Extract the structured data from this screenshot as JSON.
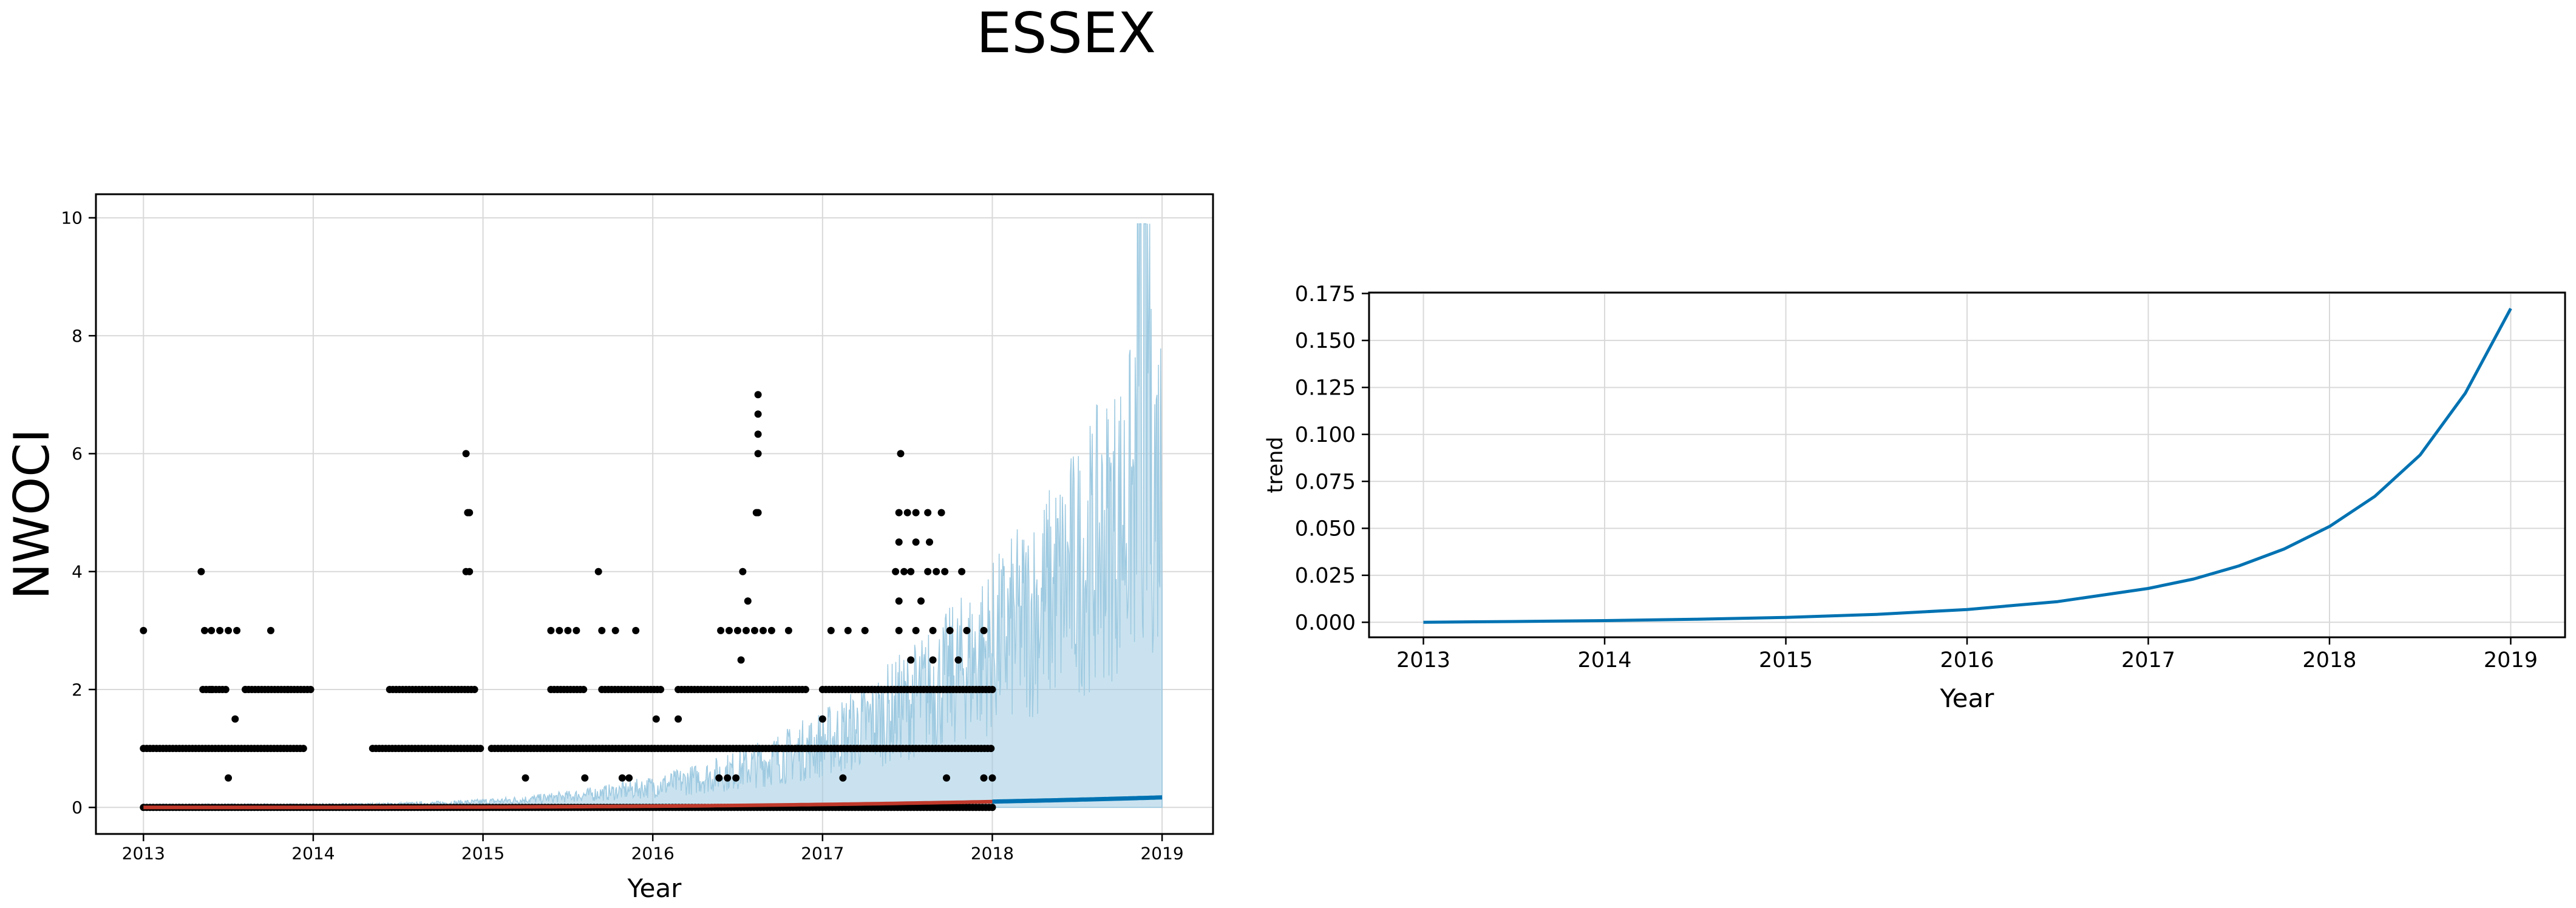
{
  "figure": {
    "title": "ESSEX"
  },
  "colors": {
    "points": "#000000",
    "band": "#9ecae1",
    "forecast": "#0072B2",
    "fit": "#c0392b",
    "trend": "#0072B2",
    "grid": "#d9d9d9"
  },
  "chart_data": [
    {
      "type": "scatter",
      "title": "",
      "xlabel": "Year",
      "ylabel": "NWOCI",
      "xlim": [
        2012.72,
        2019.3
      ],
      "ylim": [
        -0.45,
        10.4
      ],
      "xticks": [
        "2013",
        "2014",
        "2015",
        "2016",
        "2017",
        "2018",
        "2019"
      ],
      "yticks": [
        "0",
        "2",
        "4",
        "6",
        "8",
        "10"
      ],
      "grid": true,
      "series": [
        {
          "kind": "observed",
          "points": [
            [
              2013.0,
              3
            ],
            [
              2013.34,
              4
            ],
            [
              2013.36,
              3
            ],
            [
              2013.4,
              3
            ],
            [
              2013.45,
              3
            ],
            [
              2013.5,
              3
            ],
            [
              2013.55,
              3
            ],
            [
              2013.75,
              3
            ],
            [
              2013.5,
              0.5
            ],
            [
              2013.54,
              1.5
            ],
            [
              2013.4,
              2
            ],
            [
              2013.6,
              2
            ],
            [
              2013.85,
              2
            ],
            [
              2014.9,
              6
            ],
            [
              2014.91,
              5
            ],
            [
              2014.92,
              5
            ],
            [
              2014.9,
              4
            ],
            [
              2014.92,
              4
            ],
            [
              2015.4,
              3
            ],
            [
              2015.45,
              3
            ],
            [
              2015.5,
              3
            ],
            [
              2015.55,
              3
            ],
            [
              2015.68,
              4
            ],
            [
              2015.7,
              3
            ],
            [
              2015.78,
              3
            ],
            [
              2015.9,
              3
            ],
            [
              2015.6,
              0.5
            ],
            [
              2015.82,
              0.5
            ],
            [
              2015.86,
              0.5
            ],
            [
              2016.02,
              1.5
            ],
            [
              2016.15,
              1.5
            ],
            [
              2015.25,
              0.5
            ],
            [
              2016.39,
              0.5
            ],
            [
              2016.44,
              0.5
            ],
            [
              2016.49,
              0.5
            ],
            [
              2016.4,
              3
            ],
            [
              2016.45,
              3
            ],
            [
              2016.5,
              3
            ],
            [
              2016.55,
              3
            ],
            [
              2016.6,
              3
            ],
            [
              2016.65,
              3
            ],
            [
              2016.7,
              3
            ],
            [
              2016.8,
              3
            ],
            [
              2016.53,
              4
            ],
            [
              2016.56,
              3.5
            ],
            [
              2016.52,
              2.5
            ],
            [
              2016.62,
              7
            ],
            [
              2016.62,
              6.67
            ],
            [
              2016.62,
              6.33
            ],
            [
              2016.62,
              6
            ],
            [
              2016.61,
              5
            ],
            [
              2016.62,
              5
            ],
            [
              2017.05,
              3
            ],
            [
              2017.15,
              3
            ],
            [
              2017.25,
              3
            ],
            [
              2017.0,
              1.5
            ],
            [
              2017.12,
              0.5
            ],
            [
              2017.46,
              6
            ],
            [
              2017.45,
              5
            ],
            [
              2017.5,
              5
            ],
            [
              2017.55,
              5
            ],
            [
              2017.62,
              5
            ],
            [
              2017.7,
              5
            ],
            [
              2017.45,
              4.5
            ],
            [
              2017.55,
              4.5
            ],
            [
              2017.63,
              4.5
            ],
            [
              2017.43,
              4
            ],
            [
              2017.48,
              4
            ],
            [
              2017.52,
              4
            ],
            [
              2017.62,
              4
            ],
            [
              2017.67,
              4
            ],
            [
              2017.72,
              4
            ],
            [
              2017.82,
              4
            ],
            [
              2017.45,
              3.5
            ],
            [
              2017.58,
              3.5
            ],
            [
              2017.52,
              2.5
            ],
            [
              2017.65,
              2.5
            ],
            [
              2017.8,
              2.5
            ],
            [
              2017.45,
              3
            ],
            [
              2017.55,
              3
            ],
            [
              2017.65,
              3
            ],
            [
              2017.75,
              3
            ],
            [
              2017.85,
              3
            ],
            [
              2017.95,
              3
            ],
            [
              2017.73,
              0.5
            ],
            [
              2017.95,
              0.5
            ],
            [
              2018.0,
              0.5
            ]
          ],
          "constant_levels": [
            {
              "y": 0,
              "ranges": [
                [
                  2013.0,
                  2018.0
                ]
              ]
            },
            {
              "y": 1,
              "ranges": [
                [
                  2013.0,
                  2013.95
                ],
                [
                  2014.35,
                  2015.0
                ],
                [
                  2015.05,
                  2018.0
                ]
              ]
            },
            {
              "y": 2,
              "ranges": [
                [
                  2013.35,
                  2013.5
                ],
                [
                  2013.6,
                  2014.0
                ],
                [
                  2014.45,
                  2014.95
                ],
                [
                  2015.4,
                  2015.6
                ],
                [
                  2015.7,
                  2016.05
                ],
                [
                  2016.15,
                  2016.9
                ],
                [
                  2017.0,
                  2018.0
                ]
              ]
            }
          ]
        },
        {
          "kind": "forecast",
          "name": "",
          "yhat_start": 0.0,
          "yhat_end": 0.17,
          "upper_start": 0.05,
          "upper_end": 7.5,
          "upper_peak": 9.9
        }
      ]
    },
    {
      "type": "line",
      "title": "",
      "xlabel": "Year",
      "ylabel": "trend",
      "xlim": [
        2012.7,
        2019.3
      ],
      "ylim": [
        -0.008,
        0.1755
      ],
      "xticks": [
        "2013",
        "2014",
        "2015",
        "2016",
        "2017",
        "2018",
        "2019"
      ],
      "yticks": [
        "0.000",
        "0.025",
        "0.050",
        "0.075",
        "0.100",
        "0.125",
        "0.150",
        "0.175"
      ],
      "grid": true,
      "series": [
        {
          "name": "",
          "x": [
            2013.0,
            2013.5,
            2014.0,
            2014.5,
            2015.0,
            2015.5,
            2016.0,
            2016.5,
            2017.0,
            2017.25,
            2017.5,
            2017.75,
            2018.0,
            2018.25,
            2018.5,
            2018.75,
            2019.0
          ],
          "y": [
            0.0,
            0.0004,
            0.0009,
            0.0016,
            0.0026,
            0.0042,
            0.0068,
            0.011,
            0.018,
            0.023,
            0.03,
            0.039,
            0.051,
            0.067,
            0.089,
            0.122,
            0.167
          ]
        }
      ]
    }
  ]
}
